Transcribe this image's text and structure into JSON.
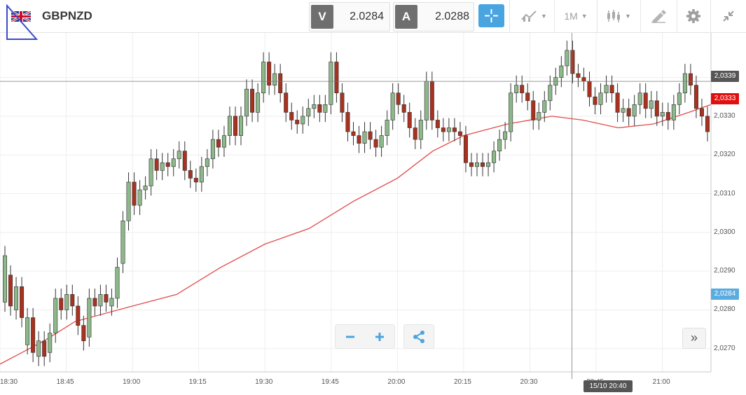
{
  "header": {
    "symbol": "GBPNZD",
    "bid_label": "V",
    "bid_price": "2.0284",
    "ask_label": "A",
    "ask_price": "2.0288",
    "timeframe": "1M"
  },
  "colors": {
    "up_candle": "#8db88a",
    "down_candle": "#a8321f",
    "ma_line": "#e24b4b",
    "accent": "#4aa4e0",
    "crosshair_tag": "#555555",
    "ma_tag": "#e01010",
    "bid_tag": "#5aace0"
  },
  "icons": [
    "flag-icon",
    "crosshair-icon",
    "chart-type-icon",
    "candle-icon",
    "draw-icon",
    "gear-icon",
    "collapse-icon",
    "zoom-out-icon",
    "zoom-in-icon",
    "share-icon",
    "expand-icon"
  ],
  "price_tags": {
    "crosshair": "2,0339",
    "ma": "2,0333",
    "bid": "2,0284"
  },
  "cursor_time": "15/10 20:40",
  "chart_data": {
    "type": "candlestick",
    "y_ticks": [
      "2,0340",
      "2,0330",
      "2,0320",
      "2,0310",
      "2,0300",
      "2,0290",
      "2,0280",
      "2,0270"
    ],
    "x_ticks": [
      "18:30",
      "18:45",
      "19:00",
      "19:15",
      "19:30",
      "19:45",
      "20:00",
      "20:15",
      "20:30",
      "20:45",
      "21:00"
    ],
    "ylim": [
      2.0264,
      2.03515
    ],
    "time_start_min": 1110,
    "time_end_min": 1271,
    "moving_average": [
      [
        1110,
        2.0266
      ],
      [
        1120,
        2.0272
      ],
      [
        1127,
        2.0277
      ],
      [
        1140,
        2.0281
      ],
      [
        1150,
        2.0284
      ],
      [
        1160,
        2.0291
      ],
      [
        1170,
        2.0297
      ],
      [
        1180,
        2.0301
      ],
      [
        1190,
        2.0308
      ],
      [
        1200,
        2.0314
      ],
      [
        1208,
        2.0321
      ],
      [
        1215,
        2.0325
      ],
      [
        1225,
        2.0328
      ],
      [
        1235,
        2.033
      ],
      [
        1242,
        2.0329
      ],
      [
        1250,
        2.0327
      ],
      [
        1258,
        2.0328
      ],
      [
        1266,
        2.0331
      ],
      [
        1271,
        2.0333
      ]
    ],
    "candles": [
      [
        2.0282,
        2.0294
      ],
      [
        2.0289,
        2.0281
      ],
      [
        2.028,
        2.0286
      ],
      [
        2.0286,
        2.0278
      ],
      [
        2.0271,
        2.0278
      ],
      [
        2.0278,
        2.0269
      ],
      [
        2.0268,
        2.0272
      ],
      [
        2.0272,
        2.0268
      ],
      [
        2.0269,
        2.0274
      ],
      [
        2.0274,
        2.0283
      ],
      [
        2.0283,
        2.028
      ],
      [
        2.028,
        2.0284
      ],
      [
        2.0284,
        2.0281
      ],
      [
        2.0281,
        2.0276
      ],
      [
        2.0276,
        2.0272
      ],
      [
        2.0273,
        2.0283
      ],
      [
        2.0283,
        2.0281
      ],
      [
        2.0281,
        2.0284
      ],
      [
        2.0284,
        2.0282
      ],
      [
        2.0281,
        2.0283
      ],
      [
        2.0283,
        2.0291
      ],
      [
        2.0292,
        2.0303
      ],
      [
        2.0303,
        2.0313
      ],
      [
        2.0313,
        2.0307
      ],
      [
        2.0307,
        2.0311
      ],
      [
        2.0311,
        2.0312
      ],
      [
        2.0312,
        2.0319
      ],
      [
        2.0319,
        2.0316
      ],
      [
        2.0316,
        2.0318
      ],
      [
        2.0318,
        2.0317
      ],
      [
        2.0317,
        2.0319
      ],
      [
        2.0319,
        2.0321
      ],
      [
        2.0321,
        2.0316
      ],
      [
        2.0316,
        2.0314
      ],
      [
        2.0314,
        2.0313
      ],
      [
        2.0313,
        2.0317
      ],
      [
        2.0317,
        2.0319
      ],
      [
        2.0319,
        2.0324
      ],
      [
        2.0324,
        2.0322
      ],
      [
        2.0322,
        2.0325
      ],
      [
        2.0325,
        2.033
      ],
      [
        2.033,
        2.0325
      ],
      [
        2.0325,
        2.033
      ],
      [
        2.033,
        2.0337
      ],
      [
        2.0337,
        2.0331
      ],
      [
        2.0331,
        2.0336
      ],
      [
        2.0336,
        2.0344
      ],
      [
        2.0344,
        2.0338
      ],
      [
        2.0338,
        2.0341
      ],
      [
        2.0341,
        2.0336
      ],
      [
        2.0336,
        2.0331
      ],
      [
        2.0331,
        2.0329
      ],
      [
        2.0329,
        2.0328
      ],
      [
        2.0328,
        2.033
      ],
      [
        2.033,
        2.0332
      ],
      [
        2.0332,
        2.0333
      ],
      [
        2.0333,
        2.0331
      ],
      [
        2.0331,
        2.0333
      ],
      [
        2.0333,
        2.0344
      ],
      [
        2.0344,
        2.0336
      ],
      [
        2.0336,
        2.0331
      ],
      [
        2.0331,
        2.0326
      ],
      [
        2.0326,
        2.0325
      ],
      [
        2.0325,
        2.0323
      ],
      [
        2.0323,
        2.0326
      ],
      [
        2.0326,
        2.0324
      ],
      [
        2.0324,
        2.0322
      ],
      [
        2.0322,
        2.0325
      ],
      [
        2.0325,
        2.0329
      ],
      [
        2.0329,
        2.0336
      ],
      [
        2.0336,
        2.0333
      ],
      [
        2.0333,
        2.0331
      ],
      [
        2.0331,
        2.0327
      ],
      [
        2.0327,
        2.0324
      ],
      [
        2.0324,
        2.0329
      ],
      [
        2.0329,
        2.0339
      ],
      [
        2.0339,
        2.0329
      ],
      [
        2.0329,
        2.0327
      ],
      [
        2.0327,
        2.0326
      ],
      [
        2.0326,
        2.0327
      ],
      [
        2.0327,
        2.0326
      ],
      [
        2.0326,
        2.0325
      ],
      [
        2.0325,
        2.0318
      ],
      [
        2.0318,
        2.0317
      ],
      [
        2.0317,
        2.0318
      ],
      [
        2.0318,
        2.0317
      ],
      [
        2.0317,
        2.0318
      ],
      [
        2.0318,
        2.0321
      ],
      [
        2.0321,
        2.0324
      ],
      [
        2.0324,
        2.0326
      ],
      [
        2.0326,
        2.0336
      ],
      [
        2.0336,
        2.0338
      ],
      [
        2.0338,
        2.0336
      ],
      [
        2.0336,
        2.0334
      ],
      [
        2.0334,
        2.0329
      ],
      [
        2.0329,
        2.0331
      ],
      [
        2.0331,
        2.0334
      ],
      [
        2.0334,
        2.0338
      ],
      [
        2.0338,
        2.034
      ],
      [
        2.034,
        2.0343
      ],
      [
        2.0343,
        2.0347
      ],
      [
        2.0347,
        2.0341
      ],
      [
        2.0341,
        2.034
      ],
      [
        2.034,
        2.0339
      ],
      [
        2.0339,
        2.0335
      ],
      [
        2.0335,
        2.0333
      ],
      [
        2.0333,
        2.0336
      ],
      [
        2.0336,
        2.0338
      ],
      [
        2.0338,
        2.0336
      ],
      [
        2.0336,
        2.0331
      ],
      [
        2.0331,
        2.0332
      ],
      [
        2.0332,
        2.033
      ],
      [
        2.033,
        2.0333
      ],
      [
        2.0333,
        2.0336
      ],
      [
        2.0336,
        2.0332
      ],
      [
        2.0332,
        2.0334
      ],
      [
        2.0334,
        2.033
      ],
      [
        2.033,
        2.0331
      ],
      [
        2.0331,
        2.0329
      ],
      [
        2.0329,
        2.0333
      ],
      [
        2.0333,
        2.0336
      ],
      [
        2.0336,
        2.0341
      ],
      [
        2.0341,
        2.0338
      ],
      [
        2.0338,
        2.0332
      ],
      [
        2.0332,
        2.033
      ],
      [
        2.033,
        2.0326
      ]
    ]
  }
}
